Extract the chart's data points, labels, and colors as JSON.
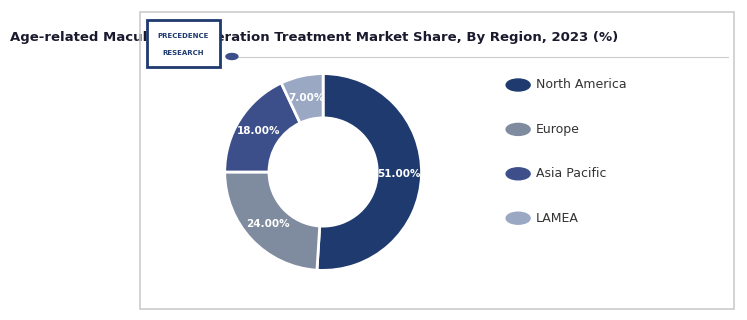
{
  "title": "Age-related Macular Degeneration Treatment Market Share, By Region, 2023 (%)",
  "labels": [
    "North America",
    "Europe",
    "Asia Pacific",
    "LAMEA"
  ],
  "values": [
    51.0,
    24.0,
    18.0,
    7.0
  ],
  "colors": [
    "#1e3a6e",
    "#7f8b9e",
    "#3d4f8a",
    "#9aa8c4"
  ],
  "pct_labels": [
    "51.00%",
    "24.00%",
    "18.00%",
    "7.00%"
  ],
  "legend_colors": [
    "#1e3a6e",
    "#7f8b9e",
    "#3d4f8a",
    "#9aa8c4"
  ],
  "background_color": "#ffffff",
  "title_fontsize": 9.5
}
